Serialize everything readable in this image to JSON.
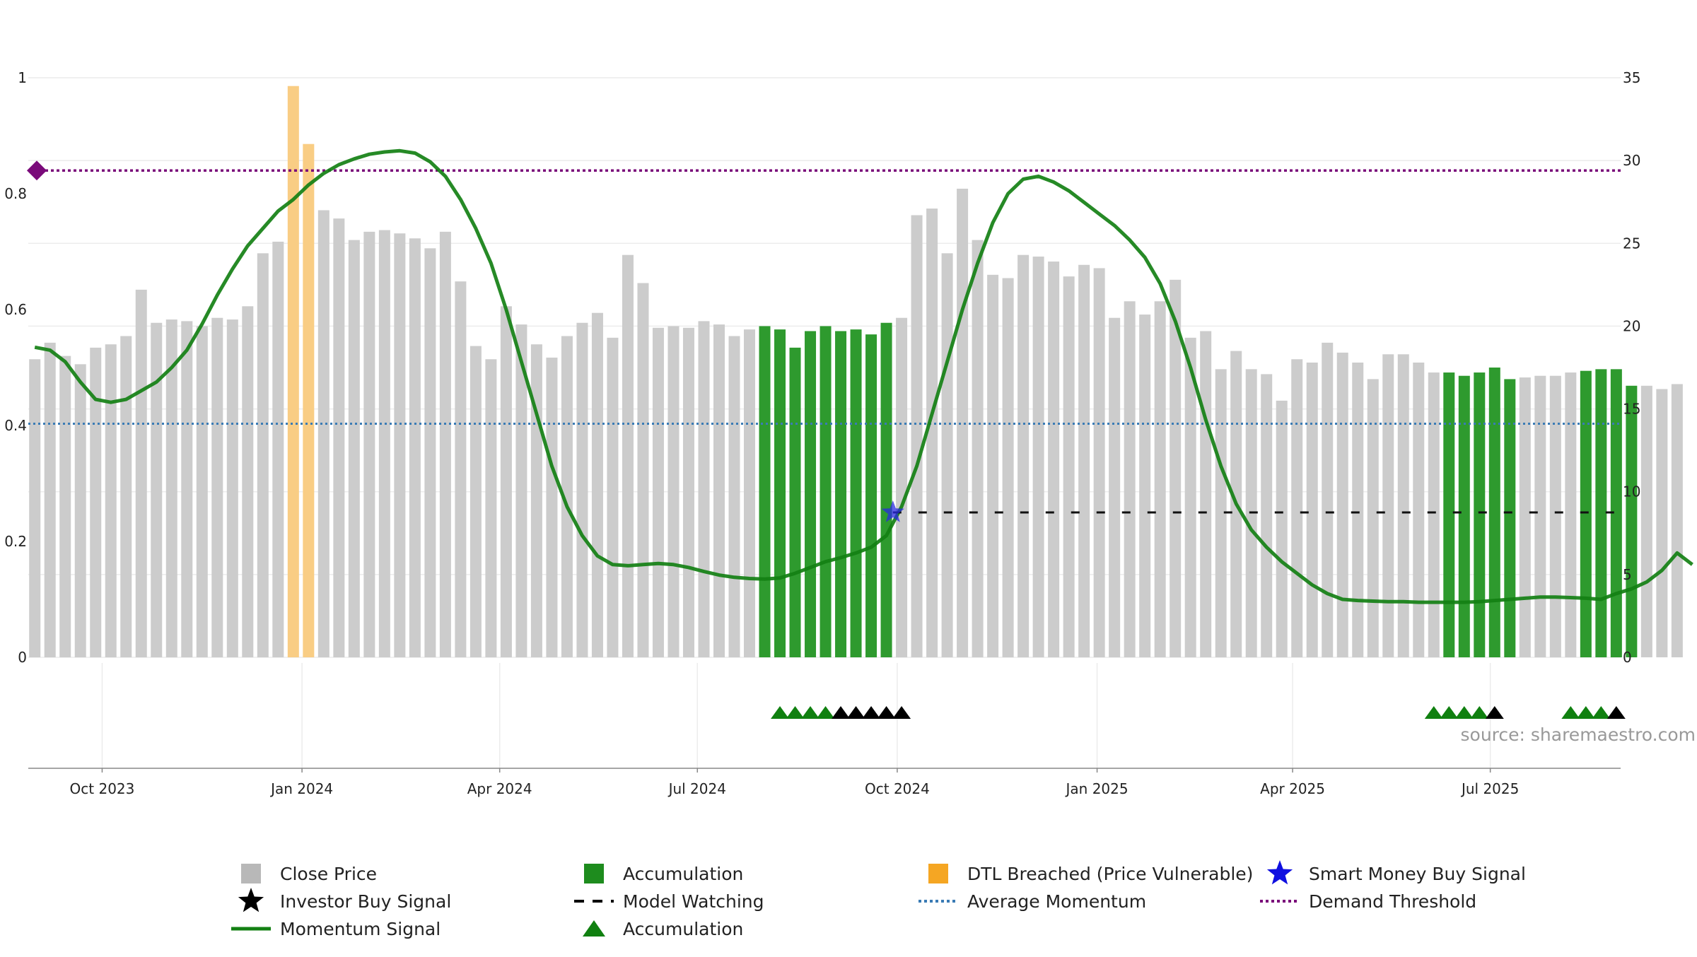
{
  "chart_data": {
    "type": "bar",
    "source": "source: sharemaestro.com",
    "left_axis": {
      "min": 0,
      "max": 1,
      "ticks": [
        "0",
        "0.2",
        "0.4",
        "0.6",
        "0.8",
        "1"
      ]
    },
    "right_axis": {
      "min": 0,
      "max": 35,
      "ticks": [
        "0",
        "5",
        "10",
        "15",
        "20",
        "25",
        "30",
        "35"
      ]
    },
    "x_axis": {
      "start": "2023-08-28",
      "end": "2025-08-30",
      "ticks": [
        {
          "label": "Oct 2023",
          "date": "2023-10-01"
        },
        {
          "label": "Jan 2024",
          "date": "2024-01-01"
        },
        {
          "label": "Apr 2024",
          "date": "2024-04-01"
        },
        {
          "label": "Jul 2024",
          "date": "2024-07-01"
        },
        {
          "label": "Oct 2024",
          "date": "2024-10-01"
        },
        {
          "label": "Jan 2025",
          "date": "2025-01-01"
        },
        {
          "label": "Apr 2025",
          "date": "2025-04-01"
        },
        {
          "label": "Jul 2025",
          "date": "2025-07-01"
        }
      ]
    },
    "bars": {
      "week_start": "2023-08-31",
      "weeks_apart": 1,
      "close_price": [
        18.0,
        19.0,
        18.2,
        17.7,
        18.7,
        18.9,
        19.4,
        22.2,
        20.2,
        20.4,
        20.3,
        20.0,
        20.5,
        20.4,
        21.2,
        24.4,
        25.1,
        34.5,
        31.0,
        27.0,
        26.5,
        25.2,
        25.7,
        25.8,
        25.6,
        25.3,
        24.7,
        25.7,
        22.7,
        18.8,
        18.0,
        21.2,
        20.1,
        18.9,
        18.1,
        19.4,
        20.2,
        20.8,
        19.3,
        24.3,
        22.6,
        19.9,
        20.0,
        19.9,
        20.3,
        20.1,
        19.4,
        19.8,
        20.0,
        19.8,
        18.7,
        19.7,
        20.0,
        19.7,
        19.8,
        19.5,
        20.2,
        20.5,
        26.7,
        27.1,
        24.4,
        28.3,
        25.2,
        23.1,
        22.9,
        24.3,
        24.2,
        23.9,
        23.0,
        23.7,
        23.5,
        20.5,
        21.5,
        20.7,
        21.5,
        22.8,
        19.3,
        19.7,
        17.4,
        18.5,
        17.4,
        17.1,
        15.5,
        18.0,
        17.8,
        19.0,
        18.4,
        17.8,
        16.8,
        18.3,
        18.3,
        17.8,
        17.2,
        17.2,
        17.0,
        17.2,
        17.5,
        16.8,
        16.9,
        17.0,
        17.0,
        17.2,
        17.3,
        17.4,
        17.4,
        16.4,
        16.4,
        16.2,
        16.5
      ],
      "accumulation_indices": [
        48,
        49,
        50,
        51,
        52,
        53,
        54,
        55,
        56,
        93,
        94,
        95,
        96,
        97,
        102,
        103,
        104,
        105
      ],
      "dtl_breached_indices": [
        17,
        18
      ]
    },
    "momentum_signal": {
      "week_start": "2023-08-31",
      "values": [
        0.535,
        0.53,
        0.51,
        0.475,
        0.445,
        0.44,
        0.445,
        0.46,
        0.475,
        0.5,
        0.53,
        0.575,
        0.625,
        0.67,
        0.71,
        0.74,
        0.77,
        0.79,
        0.815,
        0.835,
        0.85,
        0.86,
        0.868,
        0.872,
        0.874,
        0.87,
        0.855,
        0.83,
        0.79,
        0.74,
        0.68,
        0.6,
        0.51,
        0.42,
        0.33,
        0.26,
        0.21,
        0.175,
        0.16,
        0.158,
        0.16,
        0.162,
        0.16,
        0.155,
        0.148,
        0.142,
        0.138,
        0.136,
        0.135,
        0.137,
        0.145,
        0.155,
        0.165,
        0.172,
        0.18,
        0.19,
        0.21,
        0.26,
        0.33,
        0.42,
        0.51,
        0.6,
        0.68,
        0.75,
        0.8,
        0.825,
        0.83,
        0.82,
        0.805,
        0.785,
        0.765,
        0.745,
        0.72,
        0.69,
        0.645,
        0.58,
        0.5,
        0.41,
        0.33,
        0.265,
        0.22,
        0.19,
        0.165,
        0.145,
        0.125,
        0.11,
        0.1,
        0.098,
        0.097,
        0.096,
        0.096,
        0.095,
        0.095,
        0.095,
        0.095,
        0.096,
        0.098,
        0.1,
        0.102,
        0.104,
        0.104,
        0.103,
        0.102,
        0.1,
        0.11,
        0.118,
        0.13,
        0.15,
        0.18,
        0.16
      ]
    },
    "average_momentum": 0.403,
    "demand_threshold": 0.84,
    "smart_money_buy_signal": {
      "date": "2024-09-29",
      "value": 0.25
    },
    "model_watching": {
      "from": "2024-09-29",
      "to": "2025-08-28",
      "value": 0.25
    },
    "signal_triangles": [
      {
        "date": "2024-08-08",
        "kind": "accumulation"
      },
      {
        "date": "2024-08-15",
        "kind": "accumulation"
      },
      {
        "date": "2024-08-22",
        "kind": "accumulation"
      },
      {
        "date": "2024-08-29",
        "kind": "accumulation"
      },
      {
        "date": "2024-09-05",
        "kind": "investor"
      },
      {
        "date": "2024-09-12",
        "kind": "investor"
      },
      {
        "date": "2024-09-19",
        "kind": "investor"
      },
      {
        "date": "2024-09-26",
        "kind": "investor"
      },
      {
        "date": "2024-10-03",
        "kind": "investor"
      },
      {
        "date": "2025-06-05",
        "kind": "accumulation"
      },
      {
        "date": "2025-06-12",
        "kind": "accumulation"
      },
      {
        "date": "2025-06-19",
        "kind": "accumulation"
      },
      {
        "date": "2025-06-26",
        "kind": "accumulation"
      },
      {
        "date": "2025-07-03",
        "kind": "investor"
      },
      {
        "date": "2025-08-07",
        "kind": "accumulation"
      },
      {
        "date": "2025-08-14",
        "kind": "accumulation"
      },
      {
        "date": "2025-08-21",
        "kind": "accumulation"
      },
      {
        "date": "2025-08-28",
        "kind": "investor"
      }
    ],
    "legend": [
      {
        "label": "Close Price",
        "symbol": "square",
        "color": "#b8b8b8"
      },
      {
        "label": "Accumulation",
        "symbol": "square",
        "color": "#1e8c1e"
      },
      {
        "label": "DTL Breached (Price Vulnerable)",
        "symbol": "square",
        "color": "#f5a623"
      },
      {
        "label": "Smart Money Buy Signal",
        "symbol": "star",
        "color": "#1010e0"
      },
      {
        "label": "Investor Buy Signal",
        "symbol": "star",
        "color": "#000000"
      },
      {
        "label": "Model Watching",
        "symbol": "dash",
        "color": "#000000"
      },
      {
        "label": "Average Momentum",
        "symbol": "dot-line",
        "color": "#3a7bb5"
      },
      {
        "label": "Demand Threshold",
        "symbol": "dot-line",
        "color": "#7a0a7a"
      },
      {
        "label": "Momentum Signal",
        "symbol": "line",
        "color": "#138013"
      },
      {
        "label": "Accumulation",
        "symbol": "triangle",
        "color": "#108010"
      }
    ],
    "colors": {
      "close_price": "#cccccc",
      "accumulation": "#2e9a2e",
      "dtl_breached": "#f9cd84",
      "momentum": "#138013",
      "average_momentum": "#3a7bb5",
      "demand_threshold": "#7a0a7a",
      "smart_money": "#2a2ae0",
      "model_watching": "#111111",
      "triangle_accumulation": "#108010",
      "triangle_investor": "#000000"
    }
  }
}
